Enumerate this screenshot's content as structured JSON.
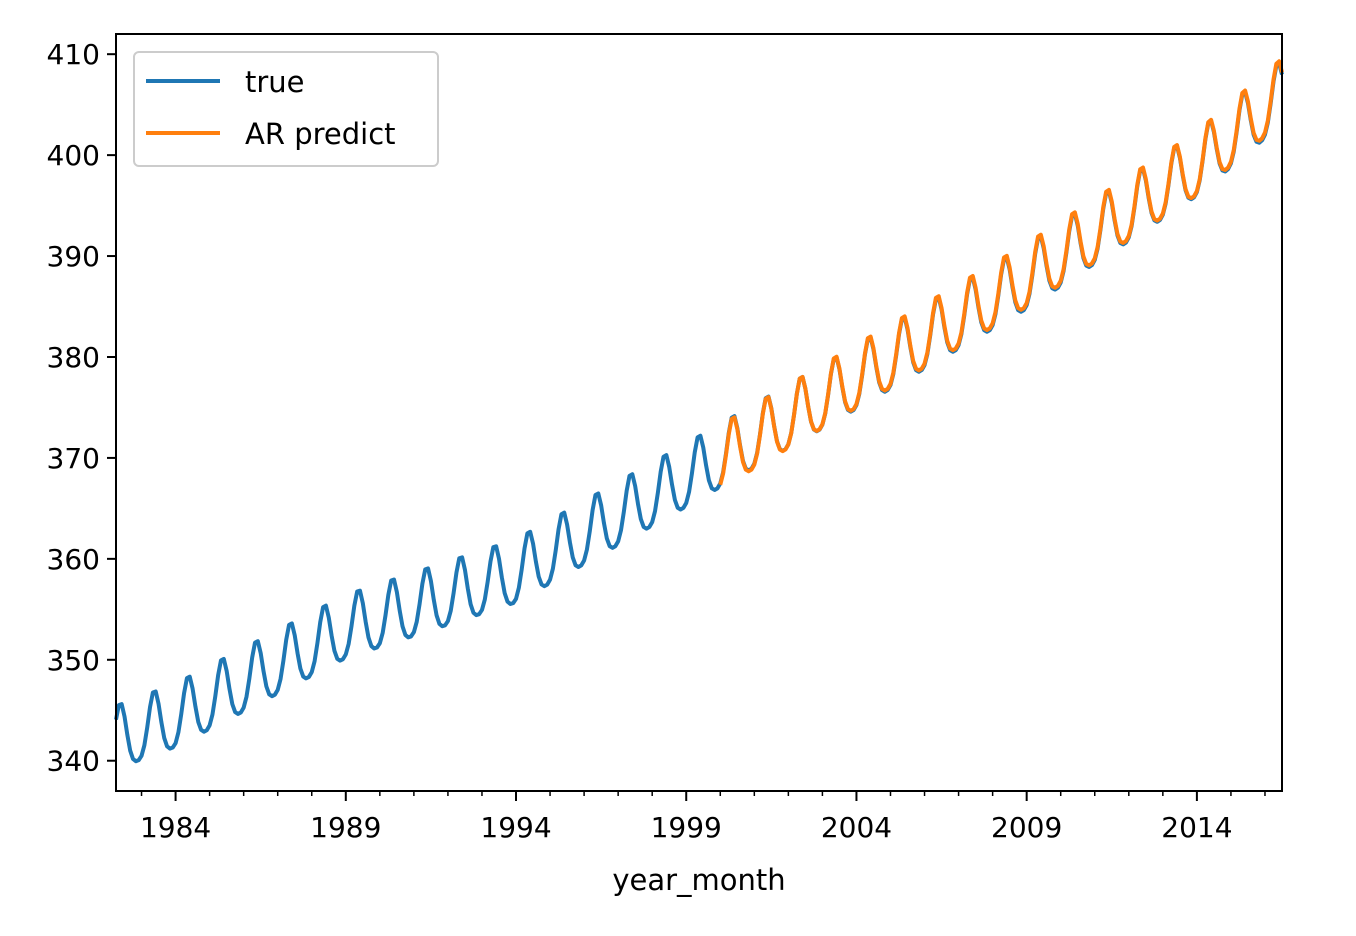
{
  "chart_data": {
    "type": "line",
    "title": "",
    "xlabel": "year_month",
    "ylabel": "",
    "xlim": [
      1982.25,
      2016.5
    ],
    "ylim": [
      337,
      412
    ],
    "x_ticks": [
      1984,
      1989,
      1994,
      1999,
      2004,
      2009,
      2014
    ],
    "x_tick_labels": [
      "1984",
      "1989",
      "1994",
      "1999",
      "2004",
      "2009",
      "2014"
    ],
    "y_ticks": [
      340,
      350,
      360,
      370,
      380,
      390,
      400,
      410
    ],
    "y_tick_labels": [
      "340",
      "350",
      "360",
      "370",
      "380",
      "390",
      "400",
      "410"
    ],
    "grid": false,
    "legend_position": "top-left",
    "frequency": "monthly",
    "season_amplitude": 3.2,
    "series": [
      {
        "name": "true",
        "color": "#1f77b4",
        "start": 1982.25,
        "end": 2016.5,
        "trend_annual_means": [
          {
            "year": 1982,
            "value": 341.5
          },
          {
            "year": 1984,
            "value": 344.0
          },
          {
            "year": 1989,
            "value": 352.8
          },
          {
            "year": 1994,
            "value": 358.3
          },
          {
            "year": 1999,
            "value": 367.8
          },
          {
            "year": 2004,
            "value": 377.5
          },
          {
            "year": 2009,
            "value": 387.4
          },
          {
            "year": 2014,
            "value": 398.6
          },
          {
            "year": 2016,
            "value": 404.3
          }
        ]
      },
      {
        "name": "AR predict",
        "color": "#ff7f0e",
        "start": 2000.0,
        "end": 2016.5,
        "trend_annual_means": [
          {
            "year": 2000,
            "value": 369.6
          },
          {
            "year": 2004,
            "value": 377.6
          },
          {
            "year": 2009,
            "value": 387.6
          },
          {
            "year": 2014,
            "value": 398.7
          },
          {
            "year": 2016,
            "value": 404.5
          }
        ]
      }
    ]
  }
}
